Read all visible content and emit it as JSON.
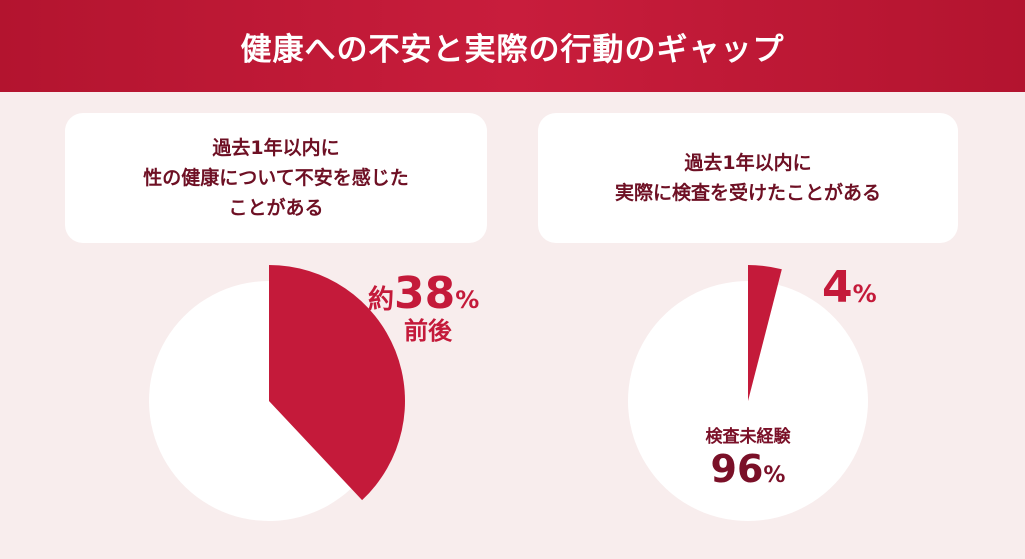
{
  "header": {
    "title": "健康への不安と実際の行動のギャップ"
  },
  "colors": {
    "accent": "#c41a3a",
    "dark": "#7a1028",
    "background": "#f8eded",
    "pie_rest": "#ffffff"
  },
  "chart_data": [
    {
      "type": "pie",
      "title": "過去1年以内に\n性の健康について不安を感じた\nことがある",
      "slices": [
        {
          "label": "約38%前後",
          "value": 38,
          "color": "#c41a3a",
          "highlighted": true
        },
        {
          "value": 62,
          "color": "#ffffff"
        }
      ],
      "annotation": {
        "prefix": "約",
        "value": "38",
        "unit": "%",
        "suffix": "前後"
      }
    },
    {
      "type": "pie",
      "title": "過去1年以内に\n実際に検査を受けたことがある",
      "slices": [
        {
          "label": "4%",
          "value": 4,
          "color": "#c41a3a",
          "highlighted": true
        },
        {
          "label": "検査未経験 96%",
          "value": 96,
          "color": "#ffffff"
        }
      ],
      "annotation": {
        "value": "4",
        "unit": "%"
      },
      "rest_annotation": {
        "label": "検査未経験",
        "value": "96",
        "unit": "%"
      }
    }
  ]
}
